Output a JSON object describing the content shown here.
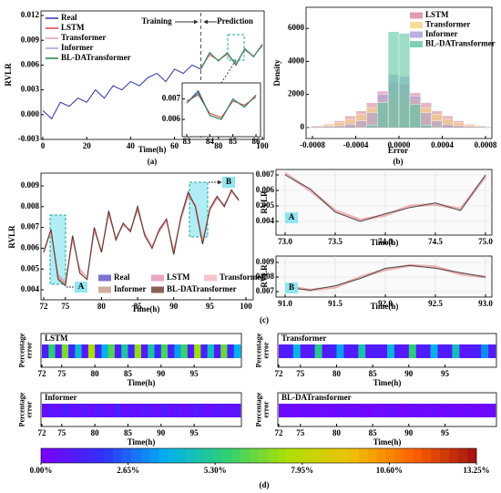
{
  "panel_labels": [
    "(a)",
    "(b)",
    "(c)",
    "(d)"
  ],
  "chart_data": [
    {
      "type": "line",
      "xlabel": "Time(h)",
      "ylabel": "RVLR",
      "x": [
        0,
        4,
        8,
        12,
        16,
        20,
        24,
        28,
        32,
        36,
        40,
        44,
        48,
        52,
        56,
        60,
        64,
        68,
        72,
        76,
        80,
        84,
        88,
        92,
        96,
        100
      ],
      "series": [
        {
          "name": "Real",
          "color": "#3a3fb0",
          "values": [
            0.0005,
            -0.0005,
            0.0015,
            0.001,
            0.002,
            0.0015,
            0.003,
            0.002,
            0.0035,
            0.003,
            0.004,
            0.0035,
            0.0045,
            0.005,
            0.004,
            0.0055,
            0.005,
            0.006,
            0.0055,
            0.0075,
            0.0065,
            0.0075,
            0.006,
            0.008,
            0.007,
            0.0085
          ]
        },
        {
          "name": "LSTM",
          "color": "#e05050",
          "values": [
            null,
            null,
            null,
            null,
            null,
            null,
            null,
            null,
            null,
            null,
            null,
            null,
            null,
            null,
            null,
            null,
            null,
            null,
            0.0057,
            0.0072,
            0.0066,
            0.0073,
            0.0062,
            0.0078,
            0.0071,
            0.0083
          ]
        },
        {
          "name": "Transformer",
          "color": "#f0a0b0",
          "values": [
            null,
            null,
            null,
            null,
            null,
            null,
            null,
            null,
            null,
            null,
            null,
            null,
            null,
            null,
            null,
            null,
            null,
            null,
            0.0056,
            0.0073,
            0.0066,
            0.0074,
            0.0061,
            0.0079,
            0.0071,
            0.0084
          ]
        },
        {
          "name": "Informer",
          "color": "#b8a0e0",
          "values": [
            null,
            null,
            null,
            null,
            null,
            null,
            null,
            null,
            null,
            null,
            null,
            null,
            null,
            null,
            null,
            null,
            null,
            null,
            0.0055,
            0.0074,
            0.0065,
            0.0075,
            0.0061,
            0.0079,
            0.007,
            0.0085
          ]
        },
        {
          "name": "BL-DATransformer",
          "color": "#2e8b57",
          "values": [
            null,
            null,
            null,
            null,
            null,
            null,
            null,
            null,
            null,
            null,
            null,
            null,
            null,
            null,
            null,
            null,
            null,
            null,
            0.0055,
            0.0075,
            0.0065,
            0.0075,
            0.006,
            0.008,
            0.007,
            0.0085
          ]
        }
      ],
      "xlim": [
        0,
        100
      ],
      "ylim": [
        -0.003,
        0.012
      ],
      "xticks": [
        0,
        20,
        40,
        60,
        80,
        100
      ],
      "yticks": [
        -0.003,
        {
          "value": 0,
          "label": "0.000"
        },
        0.003,
        0.006,
        0.009,
        0.012
      ],
      "legend": "upper left",
      "grid": false,
      "annotations": [
        "Training",
        "Prediction"
      ]
    },
    {
      "type": "line",
      "x": [
        83,
        83.5,
        84,
        84.5,
        85,
        85.5,
        86
      ],
      "series": [
        {
          "color": "#3a3fb0",
          "values": [
            0.0068,
            0.0074,
            0.0062,
            0.006,
            0.007,
            0.0066,
            0.0072
          ]
        },
        {
          "color": "#e05050",
          "values": [
            0.0069,
            0.0072,
            0.0063,
            0.0061,
            0.0069,
            0.0067,
            0.0071
          ]
        },
        {
          "color": "#2e8b57",
          "values": [
            0.0068,
            0.0073,
            0.0062,
            0.006,
            0.007,
            0.0066,
            0.0072
          ]
        }
      ],
      "xlim": [
        83,
        86
      ],
      "ylim": [
        0.0056,
        0.0077
      ],
      "xticks": [
        83,
        84,
        85,
        86
      ],
      "yticks": [
        0.006,
        0.007
      ],
      "grid": false
    },
    {
      "type": "histogram",
      "xlabel": "Error",
      "ylabel": "Density",
      "bins": [
        -0.0008,
        -0.0007,
        -0.0006,
        -0.0005,
        -0.0004,
        -0.0003,
        -0.0002,
        -0.0001,
        0,
        0.0001,
        0.0002,
        0.0003,
        0.0004,
        0.0005,
        0.0006,
        0.0007,
        0.0008
      ],
      "series": [
        {
          "name": "LSTM",
          "color": "#d9849f",
          "values": [
            100,
            200,
            400,
            700,
            1000,
            1500,
            2200,
            2700,
            2600,
            2100,
            1500,
            1000,
            700,
            400,
            200,
            100
          ]
        },
        {
          "name": "Transformer",
          "color": "#f2d27a",
          "values": [
            50,
            150,
            300,
            500,
            800,
            1200,
            1700,
            2000,
            2000,
            1700,
            1200,
            800,
            500,
            300,
            150,
            50
          ]
        },
        {
          "name": "Informer",
          "color": "#a99bd6",
          "values": [
            0,
            50,
            100,
            200,
            400,
            900,
            2000,
            3200,
            3100,
            1900,
            900,
            400,
            200,
            100,
            50,
            0
          ]
        },
        {
          "name": "BL-DATransformer",
          "color": "#5cc6a0",
          "values": [
            0,
            0,
            0,
            0,
            20,
            150,
            1500,
            5800,
            5700,
            1400,
            140,
            20,
            0,
            0,
            0,
            0
          ]
        }
      ],
      "xlim": [
        -0.0008,
        0.0008
      ],
      "ylim": [
        -670,
        7280
      ],
      "xticks": [
        -0.0008,
        -0.0004,
        {
          "value": 0,
          "label": "0.0000"
        },
        0.0004,
        0.0008
      ],
      "yticks": [
        0,
        2000,
        4000,
        6000
      ],
      "legend": "upper right",
      "grid": false
    },
    {
      "type": "line",
      "xlabel": "Time(h)",
      "ylabel": "RVLR",
      "x": [
        72,
        73,
        74,
        75,
        76,
        77,
        78,
        79,
        80,
        81,
        82,
        83,
        84,
        85,
        86,
        87,
        88,
        89,
        90,
        91,
        92,
        93,
        94,
        95,
        96,
        97,
        98,
        99
      ],
      "series": [
        {
          "name": "Real",
          "color": "#5b4fc9",
          "values": [
            0.0058,
            0.0069,
            0.0045,
            0.0042,
            0.0066,
            0.0048,
            0.0045,
            0.007,
            0.0058,
            0.0078,
            0.0064,
            0.0072,
            0.0068,
            0.008,
            0.0066,
            0.006,
            0.0069,
            0.0074,
            0.0057,
            0.0075,
            0.0087,
            0.008,
            0.0062,
            0.0079,
            0.0085,
            0.008,
            0.0088,
            0.0083
          ]
        },
        {
          "name": "LSTM",
          "color": "#e78fb3",
          "values": [
            0.0059,
            0.0068,
            0.0047,
            0.0044,
            0.0064,
            0.005,
            0.0046,
            0.0068,
            0.0059,
            0.0076,
            0.0065,
            0.0071,
            0.0069,
            0.0078,
            0.0067,
            0.0061,
            0.0068,
            0.0073,
            0.0059,
            0.0074,
            0.0085,
            0.0081,
            0.0064,
            0.0078,
            0.0084,
            0.0081,
            0.0087,
            0.0084
          ]
        },
        {
          "name": "Transformer",
          "color": "#f4b6c2",
          "values": [
            0.0058,
            0.0068,
            0.0046,
            0.0043,
            0.0065,
            0.0049,
            0.0046,
            0.0069,
            0.0058,
            0.0077,
            0.0065,
            0.0072,
            0.0068,
            0.0079,
            0.0066,
            0.0061,
            0.0069,
            0.0073,
            0.0058,
            0.0075,
            0.0086,
            0.008,
            0.0063,
            0.0078,
            0.0085,
            0.008,
            0.0087,
            0.0083
          ]
        },
        {
          "name": "Informer",
          "color": "#c49a84",
          "values": [
            0.0058,
            0.0069,
            0.0046,
            0.0043,
            0.0066,
            0.0048,
            0.0045,
            0.007,
            0.0058,
            0.0077,
            0.0064,
            0.0072,
            0.0068,
            0.0079,
            0.0066,
            0.006,
            0.0069,
            0.0074,
            0.0058,
            0.0075,
            0.0086,
            0.008,
            0.0062,
            0.0079,
            0.0085,
            0.008,
            0.0088,
            0.0083
          ]
        },
        {
          "name": "BL-DATransformer",
          "color": "#6b3a2a",
          "values": [
            0.0058,
            0.0069,
            0.0045,
            0.0042,
            0.0066,
            0.0048,
            0.0045,
            0.007,
            0.0058,
            0.0078,
            0.0064,
            0.0072,
            0.0068,
            0.008,
            0.0066,
            0.006,
            0.0069,
            0.0074,
            0.0057,
            0.0075,
            0.0087,
            0.008,
            0.0062,
            0.0079,
            0.0085,
            0.008,
            0.0088,
            0.0083
          ]
        }
      ],
      "xlim": [
        72,
        100
      ],
      "ylim": [
        0.004,
        0.009
      ],
      "xticks": [
        72,
        75,
        80,
        85,
        90,
        95,
        100
      ],
      "yticks": [
        0.004,
        0.005,
        0.006,
        0.007,
        0.008,
        0.009
      ],
      "legend": "lower center",
      "grid": false,
      "annotations": [
        "A",
        "B"
      ]
    },
    {
      "type": "line",
      "xlabel": "Time(h)",
      "ylabel": "RVLR",
      "label": "A",
      "x": [
        73,
        73.25,
        73.5,
        73.75,
        74,
        74.25,
        74.5,
        74.75,
        75
      ],
      "series": [
        {
          "color": "#e06060",
          "values": [
            0.0071,
            0.006,
            0.0047,
            0.0041,
            0.0044,
            0.005,
            0.0051,
            0.0048,
            0.0069
          ]
        },
        {
          "color": "#4a4a4a",
          "values": [
            0.007,
            0.0061,
            0.0046,
            0.004,
            0.0045,
            0.0049,
            0.0052,
            0.0047,
            0.007
          ]
        }
      ],
      "xlim": [
        73,
        75
      ],
      "ylim": [
        0.004,
        0.007
      ],
      "xticks": [
        {
          "value": 73,
          "label": "73.0"
        },
        73.5,
        {
          "value": 74,
          "label": "74.0"
        },
        74.5,
        {
          "value": 75,
          "label": "75.0"
        }
      ],
      "yticks": [
        0.004,
        0.005,
        0.006,
        0.007
      ],
      "grid": true
    },
    {
      "type": "line",
      "xlabel": "Time(h)",
      "ylabel": "RVLR",
      "label": "B",
      "x": [
        91,
        91.25,
        91.5,
        91.75,
        92,
        92.25,
        92.5,
        92.75,
        93
      ],
      "series": [
        {
          "color": "#e06060",
          "values": [
            0.0074,
            0.0071,
            0.0073,
            0.008,
            0.0085,
            0.0088,
            0.0087,
            0.0082,
            0.008
          ]
        },
        {
          "color": "#4a4a4a",
          "values": [
            0.0073,
            0.0071,
            0.0074,
            0.0079,
            0.0086,
            0.0088,
            0.0086,
            0.0083,
            0.008
          ]
        }
      ],
      "xlim": [
        91,
        93
      ],
      "ylim": [
        0.007,
        0.009
      ],
      "xticks": [
        {
          "value": 91,
          "label": "91.0"
        },
        91.5,
        {
          "value": 92,
          "label": "92.0"
        },
        92.5,
        {
          "value": 93,
          "label": "93.0"
        }
      ],
      "yticks": [
        0.007,
        0.008,
        0.009
      ],
      "grid": true
    },
    {
      "type": "heatmap",
      "title": "LSTM",
      "xlabel": "Time(h)",
      "ylabel": "Percentage error",
      "x": [
        72,
        73,
        74,
        75,
        76,
        77,
        78,
        79,
        80,
        81,
        82,
        83,
        84,
        85,
        86,
        87,
        88,
        89,
        90,
        91,
        92,
        93,
        94,
        95,
        96,
        97,
        98,
        99,
        100,
        101
      ],
      "values": [
        1.2,
        5.5,
        1.0,
        6.8,
        1.5,
        4.2,
        0.8,
        7.5,
        1.3,
        3.9,
        6.2,
        1.1,
        5.0,
        1.4,
        7.1,
        0.9,
        4.8,
        1.6,
        6.0,
        1.2,
        3.5,
        5.8,
        1.0,
        7.3,
        1.3,
        4.5,
        1.1,
        6.5,
        1.4,
        3.8
      ],
      "xlim": [
        72,
        102
      ],
      "xticks": [
        72,
        75,
        80,
        85,
        90,
        95
      ]
    },
    {
      "type": "heatmap",
      "title": "Transformer",
      "xlabel": "Time(h)",
      "ylabel": "Percentage error",
      "x": [
        72,
        73,
        74,
        75,
        76,
        77,
        78,
        79,
        80,
        81,
        82,
        83,
        84,
        85,
        86,
        87,
        88,
        89,
        90,
        91,
        92,
        93,
        94,
        95,
        96,
        97,
        98,
        99,
        100,
        101
      ],
      "values": [
        1.0,
        1.2,
        4.0,
        0.9,
        1.1,
        5.2,
        1.0,
        1.3,
        3.6,
        1.0,
        1.1,
        4.8,
        0.9,
        1.2,
        1.0,
        4.1,
        1.1,
        0.9,
        5.5,
        1.0,
        1.2,
        3.9,
        1.0,
        1.1,
        4.6,
        0.9,
        1.0,
        1.2,
        3.3,
        1.0
      ],
      "xlim": [
        72,
        102
      ],
      "xticks": [
        72,
        75,
        80,
        85,
        90,
        95
      ]
    },
    {
      "type": "heatmap",
      "title": "Informer",
      "xlabel": "Time(h)",
      "ylabel": "Percentage error",
      "x": [
        72,
        73,
        74,
        75,
        76,
        77,
        78,
        79,
        80,
        81,
        82,
        83,
        84,
        85,
        86,
        87,
        88,
        89,
        90,
        91,
        92,
        93,
        94,
        95,
        96,
        97,
        98,
        99,
        100,
        101
      ],
      "values": [
        0.6,
        0.8,
        0.5,
        1.2,
        0.7,
        0.6,
        0.9,
        0.5,
        1.0,
        0.7,
        0.6,
        1.3,
        0.5,
        0.8,
        0.6,
        0.9,
        0.7,
        0.5,
        1.1,
        0.6,
        0.8,
        0.5,
        0.7,
        1.0,
        0.6,
        0.5,
        0.9,
        0.7,
        0.6,
        0.8
      ],
      "xlim": [
        72,
        102
      ],
      "xticks": [
        72,
        75,
        80,
        85,
        90,
        95
      ]
    },
    {
      "type": "heatmap",
      "title": "BL-DATransformer",
      "xlabel": "Time(h)",
      "ylabel": "Percentage error",
      "x": [
        72,
        73,
        74,
        75,
        76,
        77,
        78,
        79,
        80,
        81,
        82,
        83,
        84,
        85,
        86,
        87,
        88,
        89,
        90,
        91,
        92,
        93,
        94,
        95,
        96,
        97,
        98,
        99,
        100,
        101
      ],
      "values": [
        0.3,
        0.4,
        0.2,
        0.5,
        0.3,
        0.3,
        0.4,
        0.2,
        0.5,
        0.3,
        0.4,
        0.3,
        0.2,
        0.4,
        0.3,
        0.5,
        0.3,
        0.2,
        0.4,
        0.3,
        0.3,
        0.5,
        0.2,
        0.4,
        0.3,
        0.3,
        0.4,
        0.2,
        0.3,
        0.4
      ],
      "xlim": [
        72,
        102
      ],
      "xticks": [
        72,
        75,
        80,
        85,
        90,
        95
      ]
    },
    {
      "type": "colorbar",
      "colormap": [
        "#7a00ff",
        "#3030ff",
        "#00b0f0",
        "#30d070",
        "#b0e000",
        "#f0c000",
        "#ff6000",
        "#a01010"
      ],
      "vlim": [
        0,
        13.25
      ],
      "ticks": [
        {
          "value": 0,
          "label": "0.00%"
        },
        {
          "value": 2.65,
          "label": "2.65%"
        },
        {
          "value": 5.3,
          "label": "5.30%"
        },
        {
          "value": 7.95,
          "label": "7.95%"
        },
        {
          "value": 10.6,
          "label": "10.60%"
        },
        {
          "value": 13.25,
          "label": "13.25%"
        }
      ]
    }
  ]
}
